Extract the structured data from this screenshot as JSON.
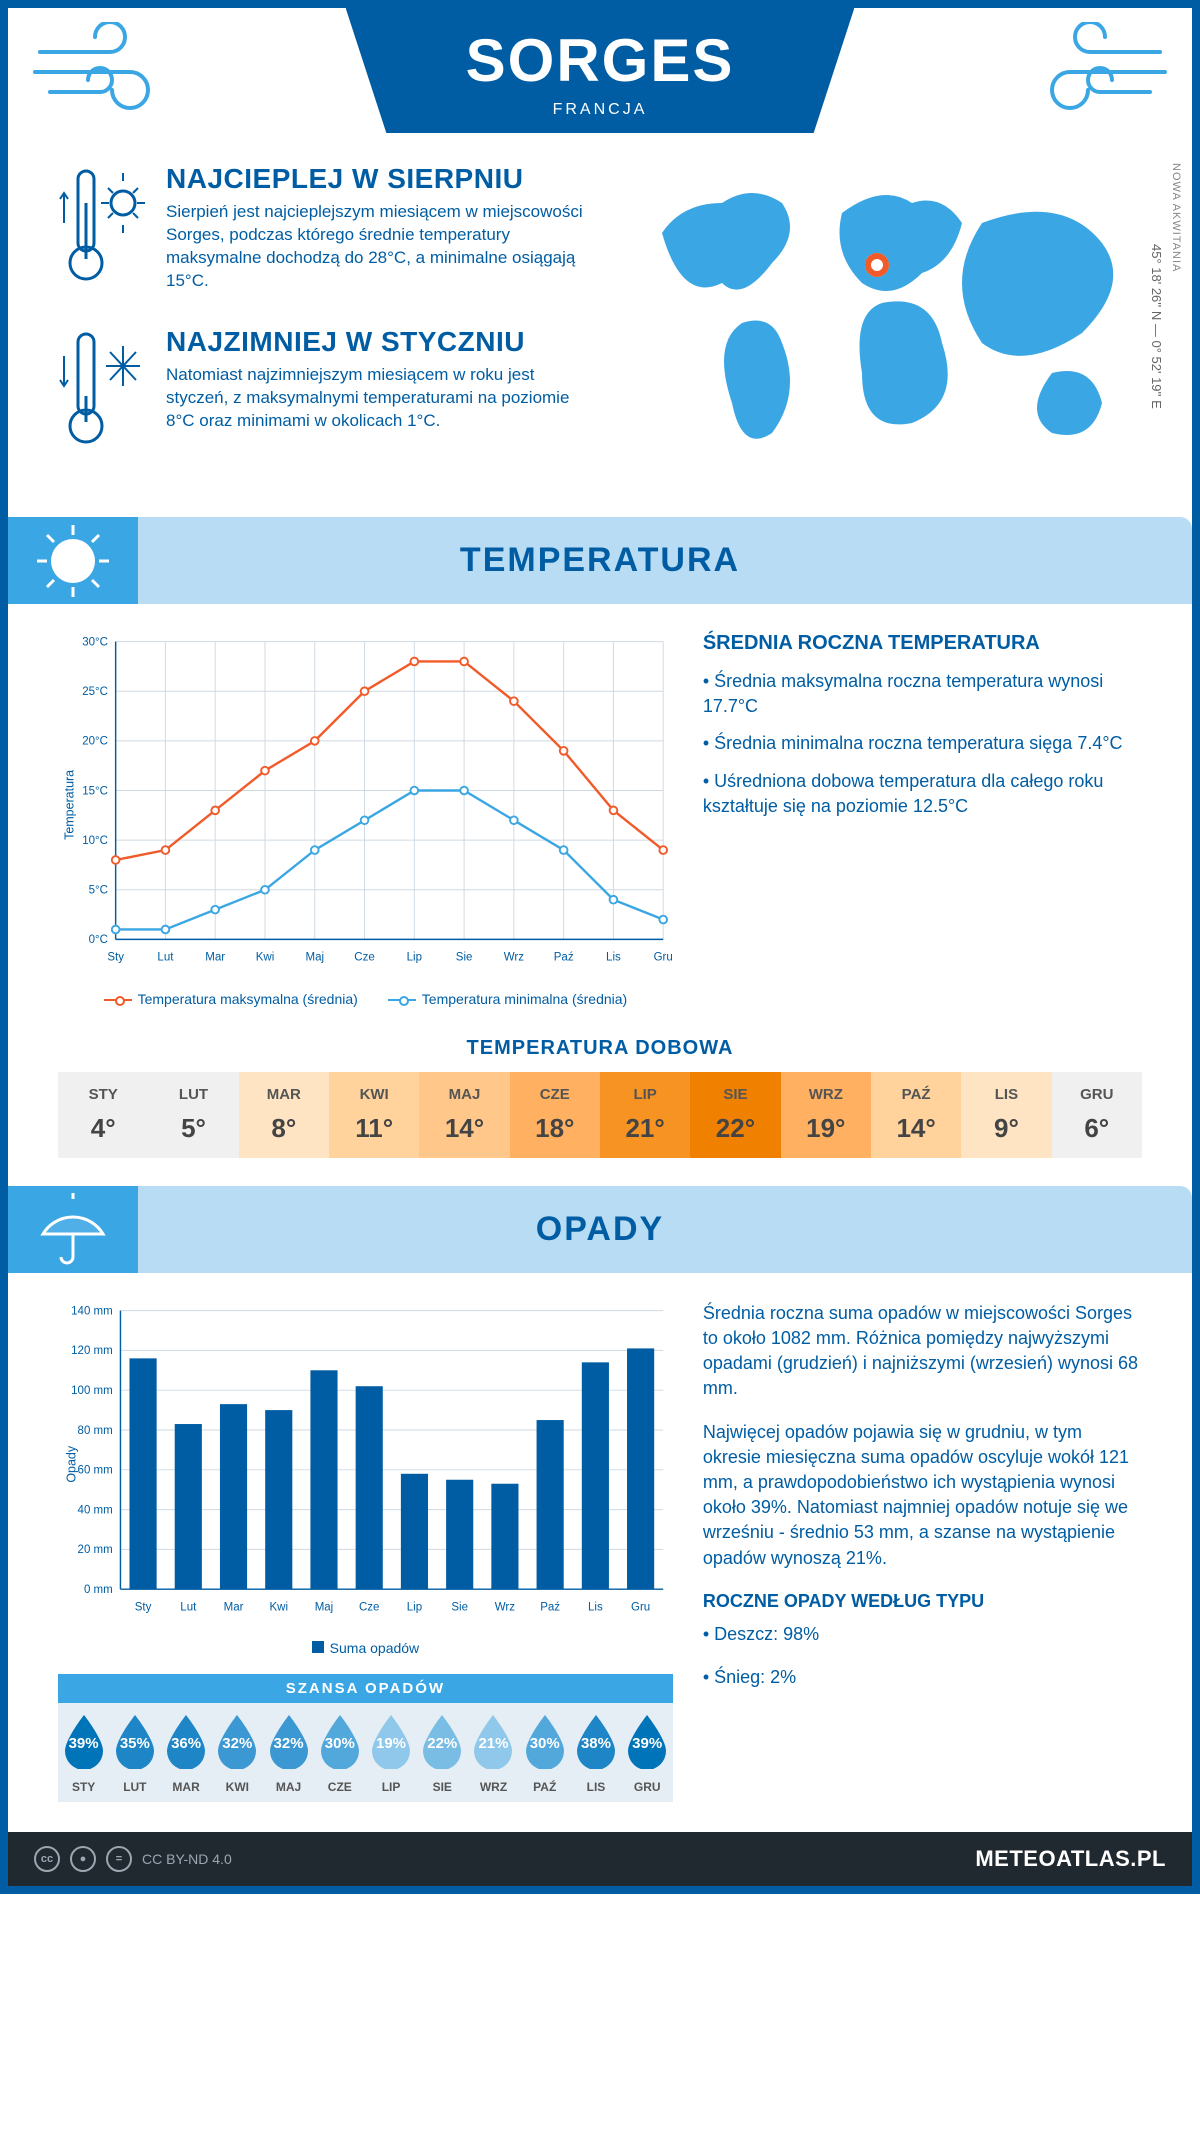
{
  "hero": {
    "title": "SORGES",
    "subtitle": "FRANCJA"
  },
  "summaries": {
    "hot": {
      "heading": "NAJCIEPLEJ W SIERPNIU",
      "text": "Sierpień jest najcieplejszym miesiącem w miejscowości Sorges, podczas którego średnie temperatury maksymalne dochodzą do 28°C, a minimalne osiągają 15°C."
    },
    "cold": {
      "heading": "NAJZIMNIEJ W STYCZNIU",
      "text": "Natomiast najzimniejszym miesiącem w roku jest styczeń, z maksymalnymi temperaturami na poziomie 8°C oraz minimami w okolicach 1°C."
    }
  },
  "map": {
    "marker_left_pct": 49,
    "marker_top_pct": 34,
    "coords": "45° 18' 26'' N — 0° 52' 19'' E",
    "region": "NOWA AKWITANIA"
  },
  "sections": {
    "temperature": "TEMPERATURA",
    "rain": "OPADY"
  },
  "temp_chart": {
    "type": "line",
    "months": [
      "Sty",
      "Lut",
      "Mar",
      "Kwi",
      "Maj",
      "Cze",
      "Lip",
      "Sie",
      "Wrz",
      "Paź",
      "Lis",
      "Gru"
    ],
    "max": [
      8,
      9,
      13,
      17,
      20,
      25,
      28,
      28,
      24,
      19,
      13,
      9
    ],
    "min": [
      1,
      1,
      3,
      5,
      9,
      12,
      15,
      15,
      12,
      9,
      4,
      2
    ],
    "ylim": [
      0,
      30
    ],
    "ytick_step": 5,
    "yformat": "°C",
    "ylabel": "Temperatura",
    "colors": {
      "max": "#f15a29",
      "min": "#3ba6e4",
      "grid": "#cfd9e2",
      "axis": "#005da3"
    },
    "legend": {
      "max": "Temperatura maksymalna (średnia)",
      "min": "Temperatura minimalna (średnia)"
    }
  },
  "annual_temp": {
    "heading": "ŚREDNIA ROCZNA TEMPERATURA",
    "bullets": [
      "Średnia maksymalna roczna temperatura wynosi 17.7°C",
      "Średnia minimalna roczna temperatura sięga 7.4°C",
      "Uśredniona dobowa temperatura dla całego roku kształtuje się na poziomie 12.5°C"
    ]
  },
  "daily": {
    "heading": "TEMPERATURA DOBOWA",
    "months": [
      "STY",
      "LUT",
      "MAR",
      "KWI",
      "MAJ",
      "CZE",
      "LIP",
      "SIE",
      "WRZ",
      "PAŹ",
      "LIS",
      "GRU"
    ],
    "values": [
      4,
      5,
      8,
      11,
      14,
      18,
      21,
      22,
      19,
      14,
      9,
      6
    ],
    "cell_colors": [
      "#f0f0f0",
      "#f0f0f0",
      "#ffe4c4",
      "#ffd39b",
      "#ffc78a",
      "#ffb060",
      "#f79322",
      "#f08000",
      "#ffb060",
      "#ffd39b",
      "#ffe4c4",
      "#f0f0f0"
    ]
  },
  "rain_chart": {
    "type": "bar",
    "months": [
      "Sty",
      "Lut",
      "Mar",
      "Kwi",
      "Maj",
      "Cze",
      "Lip",
      "Sie",
      "Wrz",
      "Paź",
      "Lis",
      "Gru"
    ],
    "values": [
      116,
      83,
      93,
      90,
      110,
      102,
      58,
      55,
      53,
      85,
      114,
      121
    ],
    "ylim": [
      0,
      140
    ],
    "ytick_step": 20,
    "yunit": " mm",
    "ylabel": "Opady",
    "bar_color": "#005da3",
    "grid_color": "#cfd9e2",
    "legend": "Suma opadów"
  },
  "rain_text": {
    "p1": "Średnia roczna suma opadów w miejscowości Sorges to około 1082 mm. Różnica pomiędzy najwyższymi opadami (grudzień) i najniższymi (wrzesień) wynosi 68 mm.",
    "p2": "Najwięcej opadów pojawia się w grudniu, w tym okresie miesięczna suma opadów oscyluje wokół 121 mm, a prawdopodobieństwo ich wystąpienia wynosi około 39%. Natomiast najmniej opadów notuje się we wrześniu - średnio 53 mm, a szanse na wystąpienie opadów wynoszą 21%."
  },
  "rain_chance": {
    "heading": "SZANSA OPADÓW",
    "months": [
      "STY",
      "LUT",
      "MAR",
      "KWI",
      "MAJ",
      "CZE",
      "LIP",
      "SIE",
      "WRZ",
      "PAŹ",
      "LIS",
      "GRU"
    ],
    "values": [
      39,
      35,
      36,
      32,
      32,
      30,
      19,
      22,
      21,
      30,
      38,
      39
    ],
    "drop_colors": [
      "#0074b8",
      "#1e86c6",
      "#1e86c6",
      "#3b98d2",
      "#3b98d2",
      "#53a8db",
      "#8fc8ea",
      "#7abde4",
      "#8fc8ea",
      "#53a8db",
      "#1e86c6",
      "#0074b8"
    ]
  },
  "rain_type": {
    "heading": "ROCZNE OPADY WEDŁUG TYPU",
    "bullets": [
      "Deszcz: 98%",
      "Śnieg: 2%"
    ]
  },
  "footer": {
    "license": "CC BY-ND 4.0",
    "site": "METEOATLAS.PL"
  }
}
